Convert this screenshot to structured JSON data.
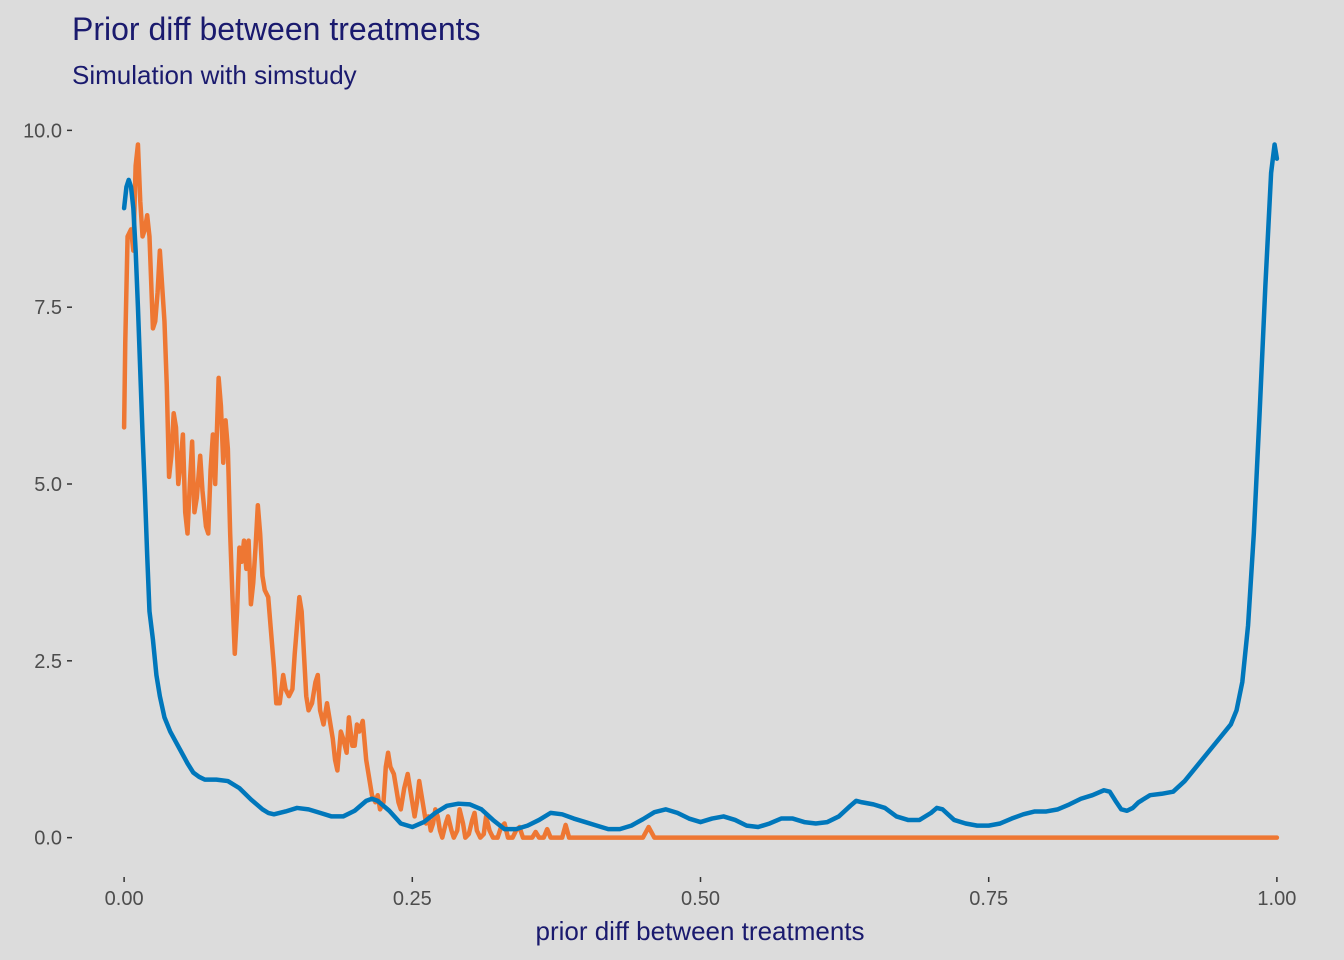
{
  "colors": {
    "background": "#dcdcdc",
    "title": "#1a1a6e",
    "tick_text": "#4d4d4d",
    "tick_mark": "#333333",
    "series_orange": "#ee7733",
    "series_blue": "#0077bb"
  },
  "chart_data": {
    "type": "line",
    "title": "Prior diff between treatments",
    "subtitle": "Simulation with simstudy",
    "xlabel": "prior diff between treatments",
    "ylabel": "",
    "xlim": [
      -0.04,
      1.04
    ],
    "ylim": [
      -0.5,
      10.5
    ],
    "grid": false,
    "legend": "none",
    "x_ticks": [
      0.0,
      0.25,
      0.5,
      0.75,
      1.0
    ],
    "x_tick_labels": [
      "0.00",
      "0.25",
      "0.50",
      "0.75",
      "1.00"
    ],
    "y_ticks": [
      0.0,
      2.5,
      5.0,
      7.5,
      10.0
    ],
    "y_tick_labels": [
      "0.0",
      "2.5",
      "5.0",
      "7.5",
      "10.0"
    ],
    "series": [
      {
        "color": "#ee7733",
        "points": [
          [
            0.0,
            5.8
          ],
          [
            0.001,
            7.0
          ],
          [
            0.003,
            8.5
          ],
          [
            0.006,
            8.6
          ],
          [
            0.008,
            8.3
          ],
          [
            0.01,
            9.5
          ],
          [
            0.012,
            9.8
          ],
          [
            0.014,
            9.0
          ],
          [
            0.016,
            8.5
          ],
          [
            0.018,
            8.6
          ],
          [
            0.02,
            8.8
          ],
          [
            0.022,
            8.5
          ],
          [
            0.025,
            7.2
          ],
          [
            0.027,
            7.3
          ],
          [
            0.029,
            7.7
          ],
          [
            0.031,
            8.3
          ],
          [
            0.033,
            7.8
          ],
          [
            0.035,
            7.3
          ],
          [
            0.037,
            6.4
          ],
          [
            0.039,
            5.1
          ],
          [
            0.041,
            5.4
          ],
          [
            0.043,
            6.0
          ],
          [
            0.045,
            5.8
          ],
          [
            0.047,
            5.0
          ],
          [
            0.049,
            5.3
          ],
          [
            0.051,
            5.7
          ],
          [
            0.053,
            4.6
          ],
          [
            0.055,
            4.3
          ],
          [
            0.057,
            5.0
          ],
          [
            0.059,
            5.6
          ],
          [
            0.061,
            4.6
          ],
          [
            0.063,
            4.8
          ],
          [
            0.066,
            5.4
          ],
          [
            0.068,
            4.9
          ],
          [
            0.071,
            4.4
          ],
          [
            0.073,
            4.3
          ],
          [
            0.075,
            5.2
          ],
          [
            0.077,
            5.7
          ],
          [
            0.079,
            5.0
          ],
          [
            0.082,
            6.5
          ],
          [
            0.084,
            6.1
          ],
          [
            0.086,
            5.3
          ],
          [
            0.088,
            5.9
          ],
          [
            0.09,
            5.5
          ],
          [
            0.092,
            4.3
          ],
          [
            0.094,
            3.4
          ],
          [
            0.096,
            2.6
          ],
          [
            0.098,
            3.2
          ],
          [
            0.1,
            4.1
          ],
          [
            0.102,
            3.9
          ],
          [
            0.104,
            4.2
          ],
          [
            0.106,
            3.8
          ],
          [
            0.108,
            4.2
          ],
          [
            0.11,
            3.3
          ],
          [
            0.112,
            3.6
          ],
          [
            0.114,
            4.1
          ],
          [
            0.116,
            4.7
          ],
          [
            0.118,
            4.3
          ],
          [
            0.12,
            3.7
          ],
          [
            0.122,
            3.5
          ],
          [
            0.125,
            3.4
          ],
          [
            0.128,
            2.8
          ],
          [
            0.13,
            2.4
          ],
          [
            0.132,
            1.9
          ],
          [
            0.135,
            1.9
          ],
          [
            0.138,
            2.3
          ],
          [
            0.14,
            2.1
          ],
          [
            0.143,
            2.0
          ],
          [
            0.146,
            2.1
          ],
          [
            0.148,
            2.6
          ],
          [
            0.15,
            3.0
          ],
          [
            0.152,
            3.4
          ],
          [
            0.154,
            3.2
          ],
          [
            0.156,
            2.6
          ],
          [
            0.158,
            2.0
          ],
          [
            0.16,
            1.8
          ],
          [
            0.163,
            1.9
          ],
          [
            0.166,
            2.2
          ],
          [
            0.168,
            2.3
          ],
          [
            0.17,
            1.8
          ],
          [
            0.173,
            1.6
          ],
          [
            0.176,
            1.9
          ],
          [
            0.178,
            1.7
          ],
          [
            0.181,
            1.4
          ],
          [
            0.183,
            1.1
          ],
          [
            0.185,
            0.95
          ],
          [
            0.188,
            1.5
          ],
          [
            0.19,
            1.4
          ],
          [
            0.193,
            1.2
          ],
          [
            0.195,
            1.7
          ],
          [
            0.198,
            1.3
          ],
          [
            0.2,
            1.3
          ],
          [
            0.202,
            1.6
          ],
          [
            0.204,
            1.5
          ],
          [
            0.207,
            1.65
          ],
          [
            0.21,
            1.1
          ],
          [
            0.212,
            0.9
          ],
          [
            0.215,
            0.6
          ],
          [
            0.218,
            0.5
          ],
          [
            0.22,
            0.6
          ],
          [
            0.222,
            0.4
          ],
          [
            0.225,
            0.5
          ],
          [
            0.227,
            1.0
          ],
          [
            0.229,
            1.2
          ],
          [
            0.231,
            1.0
          ],
          [
            0.234,
            0.9
          ],
          [
            0.236,
            0.7
          ],
          [
            0.238,
            0.5
          ],
          [
            0.24,
            0.4
          ],
          [
            0.243,
            0.7
          ],
          [
            0.246,
            0.9
          ],
          [
            0.248,
            0.7
          ],
          [
            0.25,
            0.5
          ],
          [
            0.252,
            0.3
          ],
          [
            0.254,
            0.5
          ],
          [
            0.256,
            0.8
          ],
          [
            0.258,
            0.6
          ],
          [
            0.26,
            0.4
          ],
          [
            0.262,
            0.2
          ],
          [
            0.264,
            0.3
          ],
          [
            0.266,
            0.1
          ],
          [
            0.268,
            0.2
          ],
          [
            0.27,
            0.4
          ],
          [
            0.272,
            0.3
          ],
          [
            0.274,
            0.1
          ],
          [
            0.276,
            0.0
          ],
          [
            0.279,
            0.2
          ],
          [
            0.281,
            0.3
          ],
          [
            0.284,
            0.1
          ],
          [
            0.286,
            0.0
          ],
          [
            0.289,
            0.1
          ],
          [
            0.291,
            0.4
          ],
          [
            0.294,
            0.2
          ],
          [
            0.296,
            0.0
          ],
          [
            0.299,
            0.05
          ],
          [
            0.302,
            0.25
          ],
          [
            0.304,
            0.35
          ],
          [
            0.306,
            0.1
          ],
          [
            0.309,
            0.0
          ],
          [
            0.312,
            0.05
          ],
          [
            0.314,
            0.3
          ],
          [
            0.317,
            0.1
          ],
          [
            0.32,
            0.0
          ],
          [
            0.324,
            0.0
          ],
          [
            0.327,
            0.15
          ],
          [
            0.33,
            0.2
          ],
          [
            0.333,
            0.0
          ],
          [
            0.337,
            0.0
          ],
          [
            0.34,
            0.1
          ],
          [
            0.343,
            0.15
          ],
          [
            0.346,
            0.0
          ],
          [
            0.35,
            0.0
          ],
          [
            0.354,
            0.0
          ],
          [
            0.357,
            0.08
          ],
          [
            0.36,
            0.0
          ],
          [
            0.364,
            0.0
          ],
          [
            0.367,
            0.12
          ],
          [
            0.37,
            0.0
          ],
          [
            0.374,
            0.0
          ],
          [
            0.38,
            0.0
          ],
          [
            0.383,
            0.18
          ],
          [
            0.386,
            0.0
          ],
          [
            0.39,
            0.0
          ],
          [
            0.41,
            0.0
          ],
          [
            0.43,
            0.0
          ],
          [
            0.45,
            0.0
          ],
          [
            0.455,
            0.15
          ],
          [
            0.46,
            0.0
          ],
          [
            0.5,
            0.0
          ],
          [
            0.6,
            0.0
          ],
          [
            0.7,
            0.0
          ],
          [
            0.8,
            0.0
          ],
          [
            0.9,
            0.0
          ],
          [
            1.0,
            0.0
          ]
        ]
      },
      {
        "color": "#0077bb",
        "points": [
          [
            0.0,
            8.9
          ],
          [
            0.002,
            9.2
          ],
          [
            0.004,
            9.3
          ],
          [
            0.006,
            9.2
          ],
          [
            0.008,
            8.9
          ],
          [
            0.01,
            8.3
          ],
          [
            0.012,
            7.5
          ],
          [
            0.014,
            6.6
          ],
          [
            0.016,
            5.7
          ],
          [
            0.018,
            4.9
          ],
          [
            0.02,
            4.0
          ],
          [
            0.022,
            3.2
          ],
          [
            0.025,
            2.8
          ],
          [
            0.028,
            2.3
          ],
          [
            0.031,
            2.0
          ],
          [
            0.035,
            1.7
          ],
          [
            0.04,
            1.5
          ],
          [
            0.045,
            1.35
          ],
          [
            0.05,
            1.2
          ],
          [
            0.055,
            1.05
          ],
          [
            0.06,
            0.92
          ],
          [
            0.065,
            0.86
          ],
          [
            0.07,
            0.82
          ],
          [
            0.08,
            0.82
          ],
          [
            0.09,
            0.8
          ],
          [
            0.1,
            0.7
          ],
          [
            0.11,
            0.54
          ],
          [
            0.12,
            0.4
          ],
          [
            0.125,
            0.35
          ],
          [
            0.13,
            0.33
          ],
          [
            0.14,
            0.37
          ],
          [
            0.15,
            0.42
          ],
          [
            0.16,
            0.4
          ],
          [
            0.17,
            0.35
          ],
          [
            0.18,
            0.3
          ],
          [
            0.19,
            0.3
          ],
          [
            0.2,
            0.38
          ],
          [
            0.21,
            0.52
          ],
          [
            0.215,
            0.55
          ],
          [
            0.22,
            0.52
          ],
          [
            0.23,
            0.38
          ],
          [
            0.24,
            0.2
          ],
          [
            0.25,
            0.15
          ],
          [
            0.26,
            0.22
          ],
          [
            0.27,
            0.35
          ],
          [
            0.28,
            0.45
          ],
          [
            0.29,
            0.48
          ],
          [
            0.3,
            0.47
          ],
          [
            0.31,
            0.4
          ],
          [
            0.32,
            0.25
          ],
          [
            0.33,
            0.12
          ],
          [
            0.34,
            0.12
          ],
          [
            0.35,
            0.17
          ],
          [
            0.36,
            0.25
          ],
          [
            0.37,
            0.35
          ],
          [
            0.38,
            0.33
          ],
          [
            0.39,
            0.27
          ],
          [
            0.4,
            0.22
          ],
          [
            0.41,
            0.17
          ],
          [
            0.42,
            0.12
          ],
          [
            0.43,
            0.12
          ],
          [
            0.44,
            0.17
          ],
          [
            0.45,
            0.26
          ],
          [
            0.46,
            0.36
          ],
          [
            0.47,
            0.4
          ],
          [
            0.48,
            0.35
          ],
          [
            0.49,
            0.27
          ],
          [
            0.5,
            0.22
          ],
          [
            0.51,
            0.27
          ],
          [
            0.52,
            0.3
          ],
          [
            0.53,
            0.25
          ],
          [
            0.54,
            0.17
          ],
          [
            0.55,
            0.15
          ],
          [
            0.56,
            0.2
          ],
          [
            0.57,
            0.27
          ],
          [
            0.58,
            0.27
          ],
          [
            0.59,
            0.22
          ],
          [
            0.6,
            0.2
          ],
          [
            0.61,
            0.22
          ],
          [
            0.62,
            0.3
          ],
          [
            0.63,
            0.45
          ],
          [
            0.635,
            0.52
          ],
          [
            0.64,
            0.5
          ],
          [
            0.65,
            0.47
          ],
          [
            0.66,
            0.42
          ],
          [
            0.67,
            0.3
          ],
          [
            0.68,
            0.25
          ],
          [
            0.69,
            0.25
          ],
          [
            0.7,
            0.35
          ],
          [
            0.705,
            0.42
          ],
          [
            0.71,
            0.4
          ],
          [
            0.72,
            0.25
          ],
          [
            0.73,
            0.2
          ],
          [
            0.74,
            0.17
          ],
          [
            0.75,
            0.17
          ],
          [
            0.76,
            0.2
          ],
          [
            0.77,
            0.27
          ],
          [
            0.78,
            0.33
          ],
          [
            0.79,
            0.37
          ],
          [
            0.8,
            0.37
          ],
          [
            0.81,
            0.4
          ],
          [
            0.82,
            0.47
          ],
          [
            0.83,
            0.55
          ],
          [
            0.84,
            0.6
          ],
          [
            0.85,
            0.67
          ],
          [
            0.855,
            0.65
          ],
          [
            0.86,
            0.52
          ],
          [
            0.865,
            0.4
          ],
          [
            0.87,
            0.38
          ],
          [
            0.875,
            0.42
          ],
          [
            0.88,
            0.5
          ],
          [
            0.89,
            0.6
          ],
          [
            0.9,
            0.62
          ],
          [
            0.91,
            0.65
          ],
          [
            0.92,
            0.8
          ],
          [
            0.93,
            1.0
          ],
          [
            0.94,
            1.2
          ],
          [
            0.95,
            1.4
          ],
          [
            0.96,
            1.6
          ],
          [
            0.965,
            1.8
          ],
          [
            0.97,
            2.2
          ],
          [
            0.975,
            3.0
          ],
          [
            0.98,
            4.3
          ],
          [
            0.985,
            6.0
          ],
          [
            0.99,
            7.8
          ],
          [
            0.995,
            9.4
          ],
          [
            0.998,
            9.8
          ],
          [
            1.0,
            9.6
          ]
        ]
      }
    ]
  }
}
